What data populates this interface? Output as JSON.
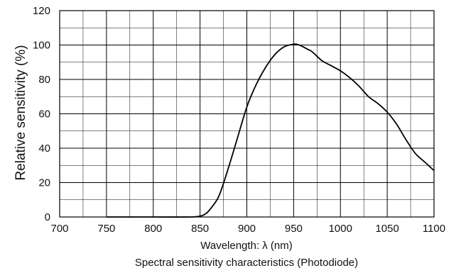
{
  "chart_data": {
    "type": "line",
    "title": "",
    "caption": "Spectral sensitivity characteristics (Photodiode)",
    "xlabel": "Wavelength: λ (nm)",
    "ylabel": "Relative sensitivity (%)",
    "xlim": [
      700,
      1100
    ],
    "ylim": [
      0,
      120
    ],
    "xticks": [
      700,
      750,
      800,
      850,
      900,
      950,
      1000,
      1050,
      1100
    ],
    "yticks": [
      0,
      20,
      40,
      60,
      80,
      100,
      120
    ],
    "x_minor_gridlines": [
      725,
      775,
      825,
      875,
      925,
      975,
      1025,
      1075
    ],
    "y_minor_gridlines": [
      10,
      30,
      50,
      70,
      90,
      110
    ],
    "grid": true,
    "series": [
      {
        "color": "#000000",
        "x": [
          750,
          800,
          840,
          850,
          855,
          860,
          870,
          880,
          890,
          900,
          910,
          920,
          930,
          940,
          950,
          955,
          960,
          965,
          970,
          980,
          990,
          1000,
          1010,
          1020,
          1030,
          1040,
          1050,
          1060,
          1070,
          1080,
          1090,
          1100
        ],
        "y": [
          0,
          0,
          0,
          0.5,
          1.5,
          4,
          12,
          28,
          46,
          64,
          77,
          87,
          94.5,
          99,
          100.5,
          100.2,
          99,
          97.5,
          96,
          91,
          88,
          85,
          81,
          76,
          70,
          66,
          61,
          54,
          45,
          37,
          32,
          27
        ]
      }
    ]
  }
}
